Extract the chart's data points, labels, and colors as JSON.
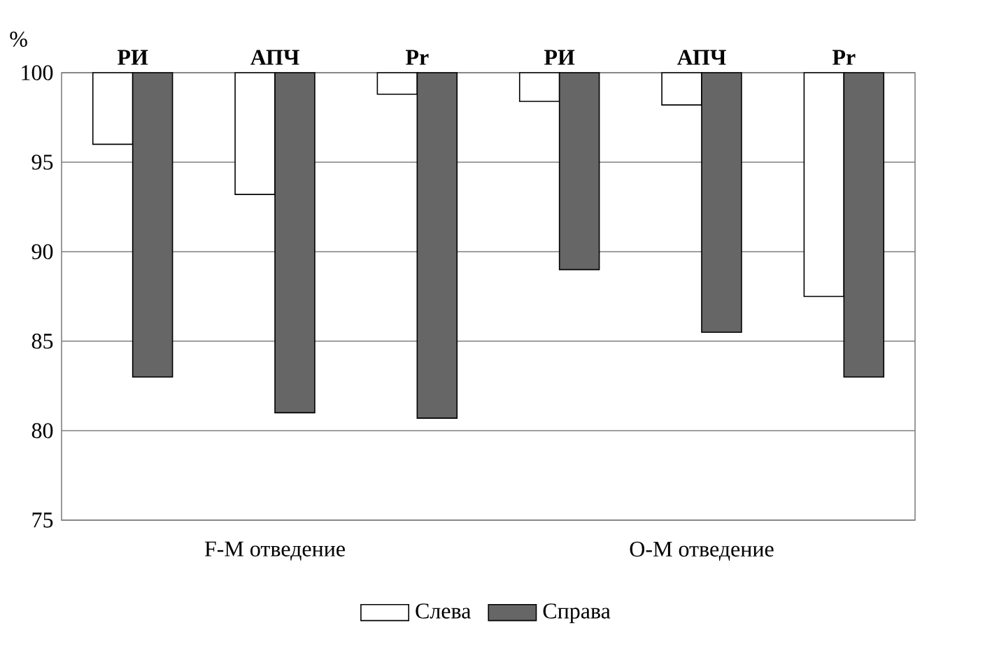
{
  "chart_data": {
    "type": "bar",
    "ylabel": "%",
    "categories": [
      "РИ",
      "АПЧ",
      "Pr",
      "РИ",
      "АПЧ",
      "Pr"
    ],
    "series": [
      {
        "name": "Слева",
        "color": "#ffffff",
        "base": [
          100,
          100,
          100,
          100,
          100,
          100
        ],
        "values": [
          -4,
          -6.8,
          -1.2,
          -1.6,
          -1.8,
          -12.5
        ]
      },
      {
        "name": "Справа",
        "color": "#666666",
        "base": [
          100,
          100,
          100,
          100,
          100,
          100
        ],
        "values": [
          -17,
          -19,
          -19.3,
          -11,
          -14.5,
          -17
        ]
      }
    ],
    "ylim": [
      75,
      100
    ],
    "yticks": [
      75,
      80,
      85,
      90,
      95,
      100
    ],
    "grid": "y",
    "legend": "bottom",
    "annotations": [
      "F-M отведение",
      "O-M отведение"
    ]
  }
}
